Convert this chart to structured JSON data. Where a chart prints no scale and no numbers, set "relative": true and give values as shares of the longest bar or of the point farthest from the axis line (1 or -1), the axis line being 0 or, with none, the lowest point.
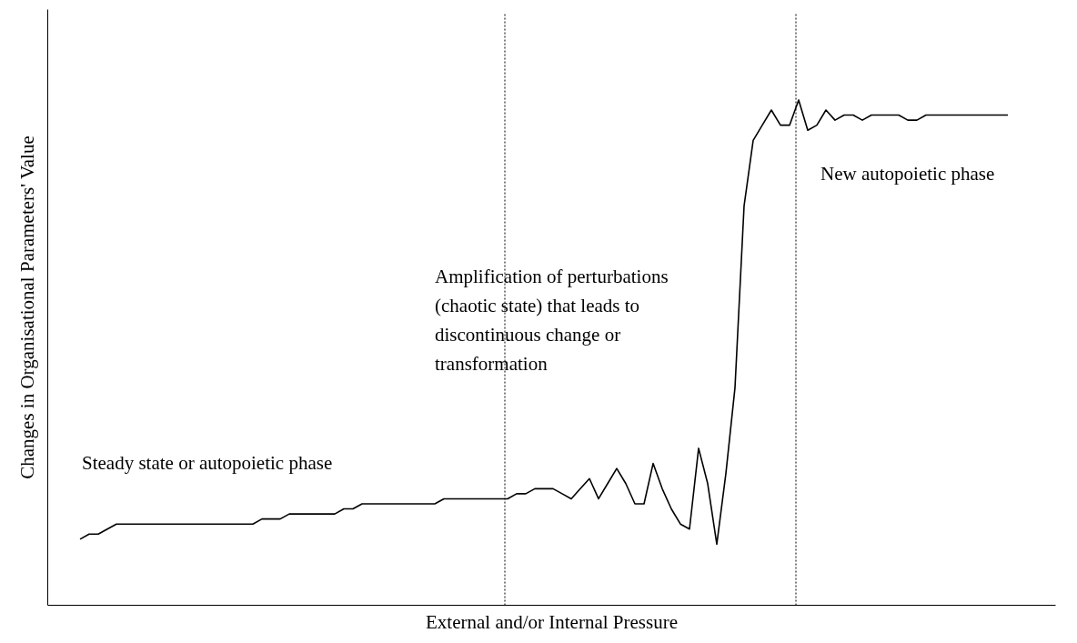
{
  "chart_data": {
    "type": "line",
    "relative": true,
    "xlabel": "External and/or Internal Pressure",
    "ylabel": "Changes in Organisational Parameters' Value",
    "categories": [
      null,
      null,
      null,
      null,
      null,
      null,
      null,
      null,
      null,
      null,
      null,
      null,
      null,
      null,
      null,
      null,
      null,
      null,
      null,
      null,
      null,
      null,
      null,
      null,
      null,
      null,
      null,
      null,
      null,
      null,
      null,
      null,
      null,
      null,
      null,
      null,
      null,
      null,
      null,
      null,
      null,
      null,
      null,
      null,
      null,
      null,
      null,
      null,
      null,
      null,
      null,
      null,
      null,
      null,
      null,
      null,
      null,
      null,
      null,
      null,
      null,
      null,
      null,
      null,
      null,
      null,
      null,
      null,
      null,
      null,
      null,
      null,
      null,
      null,
      null,
      null,
      null,
      null,
      null,
      null,
      null,
      null,
      null,
      null,
      null,
      null,
      null,
      null,
      null,
      null,
      null,
      null,
      null,
      null,
      null,
      null,
      null,
      null,
      null,
      null,
      null,
      null,
      null
    ],
    "series": [
      {
        "color": "#000000",
        "values": [
          0.13,
          0.14,
          0.14,
          0.15,
          0.16,
          0.16,
          0.16,
          0.16,
          0.16,
          0.16,
          0.16,
          0.16,
          0.16,
          0.16,
          0.16,
          0.16,
          0.16,
          0.16,
          0.16,
          0.16,
          0.17,
          0.17,
          0.17,
          0.18,
          0.18,
          0.18,
          0.18,
          0.18,
          0.18,
          0.19,
          0.19,
          0.2,
          0.2,
          0.2,
          0.2,
          0.2,
          0.2,
          0.2,
          0.2,
          0.2,
          0.21,
          0.21,
          0.21,
          0.21,
          0.21,
          0.21,
          0.21,
          0.21,
          0.22,
          0.22,
          0.23,
          0.23,
          0.23,
          0.22,
          0.21,
          0.23,
          0.25,
          0.21,
          0.24,
          0.27,
          0.24,
          0.2,
          0.2,
          0.28,
          0.23,
          0.19,
          0.16,
          0.15,
          0.31,
          0.24,
          0.12,
          0.26,
          0.43,
          0.79,
          0.92,
          0.95,
          0.98,
          0.95,
          0.95,
          1,
          0.94,
          0.95,
          0.98,
          0.96,
          0.97,
          0.97,
          0.96,
          0.97,
          0.97,
          0.97,
          0.97,
          0.96,
          0.96,
          0.97,
          0.97,
          0.97,
          0.97,
          0.97,
          0.97,
          0.97,
          0.97,
          0.97,
          0.97
        ]
      }
    ],
    "annotations": [
      "Steady state or autopoietic phase",
      "Amplification of perturbations (chaotic state) that leads to discontinuous change or transformation",
      "New autopoietic phase"
    ],
    "grid": false,
    "tick_labels": false,
    "line_style": "solid",
    "marker": "none"
  }
}
